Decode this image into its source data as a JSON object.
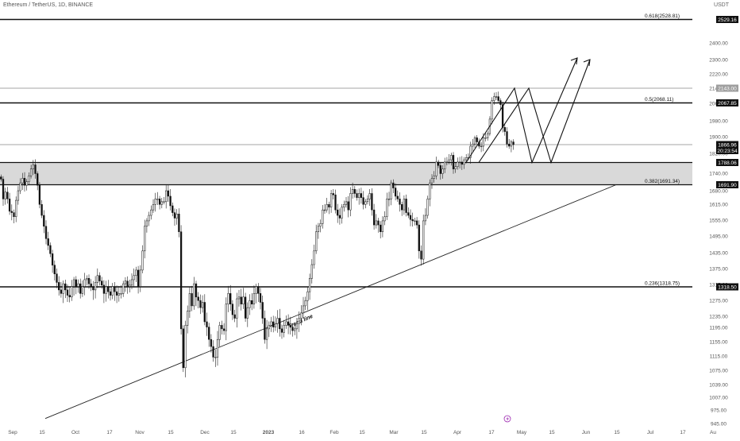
{
  "header": {
    "symbol_line": "Ethereum / TetherUS, 1D, BINANCE",
    "currency": "USDT"
  },
  "chart_data": {
    "type": "candlestick",
    "x_ticks": [
      "Sep",
      "15",
      "Oct",
      "17",
      "Nov",
      "15",
      "Dec",
      "15",
      "2023",
      "16",
      "Feb",
      "15",
      "Mar",
      "15",
      "Apr",
      "17",
      "May",
      "15",
      "Jun",
      "15",
      "Jul",
      "17",
      "Au"
    ],
    "y_ticks": [
      "2400.00",
      "2300.00",
      "2220.00",
      "2140.00",
      "2060.00",
      "1980.00",
      "1900.00",
      "1820.00",
      "1740.00",
      "1680.00",
      "1615.00",
      "1555.00",
      "1495.00",
      "1435.00",
      "1375.00",
      "1315.00",
      "1275.00",
      "1235.00",
      "1195.00",
      "1155.00",
      "1115.00",
      "1075.00",
      "1039.00",
      "1007.00",
      "975.00",
      "945.00"
    ],
    "price_labels": [
      {
        "text": "2529.16",
        "style": "dark"
      },
      {
        "text": "2143.00",
        "style": "grey"
      },
      {
        "text": "2067.85",
        "style": "dark"
      },
      {
        "text": "1866.96",
        "style": "dark"
      },
      {
        "text": "20:23:54",
        "style": "dark"
      },
      {
        "text": "1788.06",
        "style": "dark"
      },
      {
        "text": "1691.90",
        "style": "dark"
      },
      {
        "text": "1318.50",
        "style": "dark"
      }
    ],
    "fib_labels": [
      {
        "text": "0.618(2528.81)",
        "price": 2528.81
      },
      {
        "text": "0.5(2068.11)",
        "price": 2068.11
      },
      {
        "text": "0.382(1691.34)",
        "price": 1691.34
      },
      {
        "text": "0.236(1318.75)",
        "price": 1318.75
      }
    ],
    "levels": [
      {
        "price": 2528.81,
        "kind": "thick"
      },
      {
        "price": 2143.0,
        "kind": "thin"
      },
      {
        "price": 2068.11,
        "kind": "thick"
      },
      {
        "price": 1866.96,
        "kind": "thin"
      },
      {
        "price": 1318.75,
        "kind": "thick"
      }
    ],
    "zone": {
      "top": 1788.06,
      "bottom": 1691.9
    },
    "trend_line": {
      "label": "Trend line",
      "from": [
        "Sep 08",
        955
      ],
      "to": [
        "Jun 15",
        1691.9
      ]
    },
    "candles_close": [
      1716,
      1640,
      1665,
      1640,
      1595,
      1590,
      1575,
      1635,
      1670,
      1700,
      1720,
      1690,
      1705,
      1730,
      1760,
      1778,
      1740,
      1690,
      1620,
      1580,
      1540,
      1495,
      1470,
      1440,
      1398,
      1366,
      1335,
      1310,
      1300,
      1330,
      1310,
      1295,
      1290,
      1320,
      1345,
      1320,
      1330,
      1300,
      1320,
      1345,
      1350,
      1330,
      1320,
      1310,
      1335,
      1360,
      1340,
      1325,
      1300,
      1320,
      1305,
      1295,
      1320,
      1305,
      1295,
      1300,
      1300,
      1330,
      1340,
      1320,
      1325,
      1345,
      1360,
      1380,
      1320,
      1380,
      1450,
      1540,
      1560,
      1580,
      1600,
      1620,
      1640,
      1640,
      1620,
      1630,
      1630,
      1670,
      1650,
      1615,
      1590,
      1570,
      1585,
      1520,
      1200,
      1090,
      1210,
      1250,
      1300,
      1265,
      1330,
      1290,
      1280,
      1260,
      1275,
      1220,
      1205,
      1170,
      1150,
      1120,
      1120,
      1170,
      1210,
      1200,
      1195,
      1270,
      1300,
      1270,
      1240,
      1230,
      1285,
      1290,
      1270,
      1290,
      1230,
      1260,
      1280,
      1270,
      1300,
      1320,
      1300,
      1275,
      1230,
      1170,
      1200,
      1210,
      1220,
      1205,
      1215,
      1230,
      1200,
      1190,
      1210,
      1220,
      1210,
      1205,
      1195,
      1200,
      1215,
      1230,
      1245,
      1265,
      1280,
      1305,
      1350,
      1400,
      1450,
      1520,
      1540,
      1550,
      1600,
      1600,
      1620,
      1610,
      1660,
      1655,
      1600,
      1580,
      1570,
      1610,
      1620,
      1630,
      1600,
      1660,
      1675,
      1660,
      1645,
      1660,
      1645,
      1620,
      1630,
      1640,
      1660,
      1600,
      1545,
      1560,
      1545,
      1520,
      1560,
      1575,
      1640,
      1640,
      1700,
      1680,
      1650,
      1640,
      1620,
      1600,
      1640,
      1590,
      1580,
      1565,
      1560,
      1560,
      1545,
      1450,
      1420,
      1560,
      1580,
      1640,
      1700,
      1720,
      1730,
      1790,
      1775,
      1740,
      1760,
      1790,
      1790,
      1800,
      1820,
      1760,
      1770,
      1790,
      1790,
      1780,
      1800,
      1810,
      1810,
      1860,
      1870,
      1900,
      1880,
      1860,
      1860,
      1900,
      1900,
      1920,
      1990,
      2080,
      2100,
      2100,
      2080,
      2060,
      1950,
      1930,
      1870,
      1860,
      1880,
      1867
    ],
    "arrows": [
      {
        "from": [
          1910,
          1787
        ],
        "to": [
          2143,
          1950,
          1787,
          2330
        ]
      },
      {
        "from": [
          1800,
          1787
        ],
        "to": [
          2143,
          1787,
          2330
        ]
      }
    ]
  }
}
